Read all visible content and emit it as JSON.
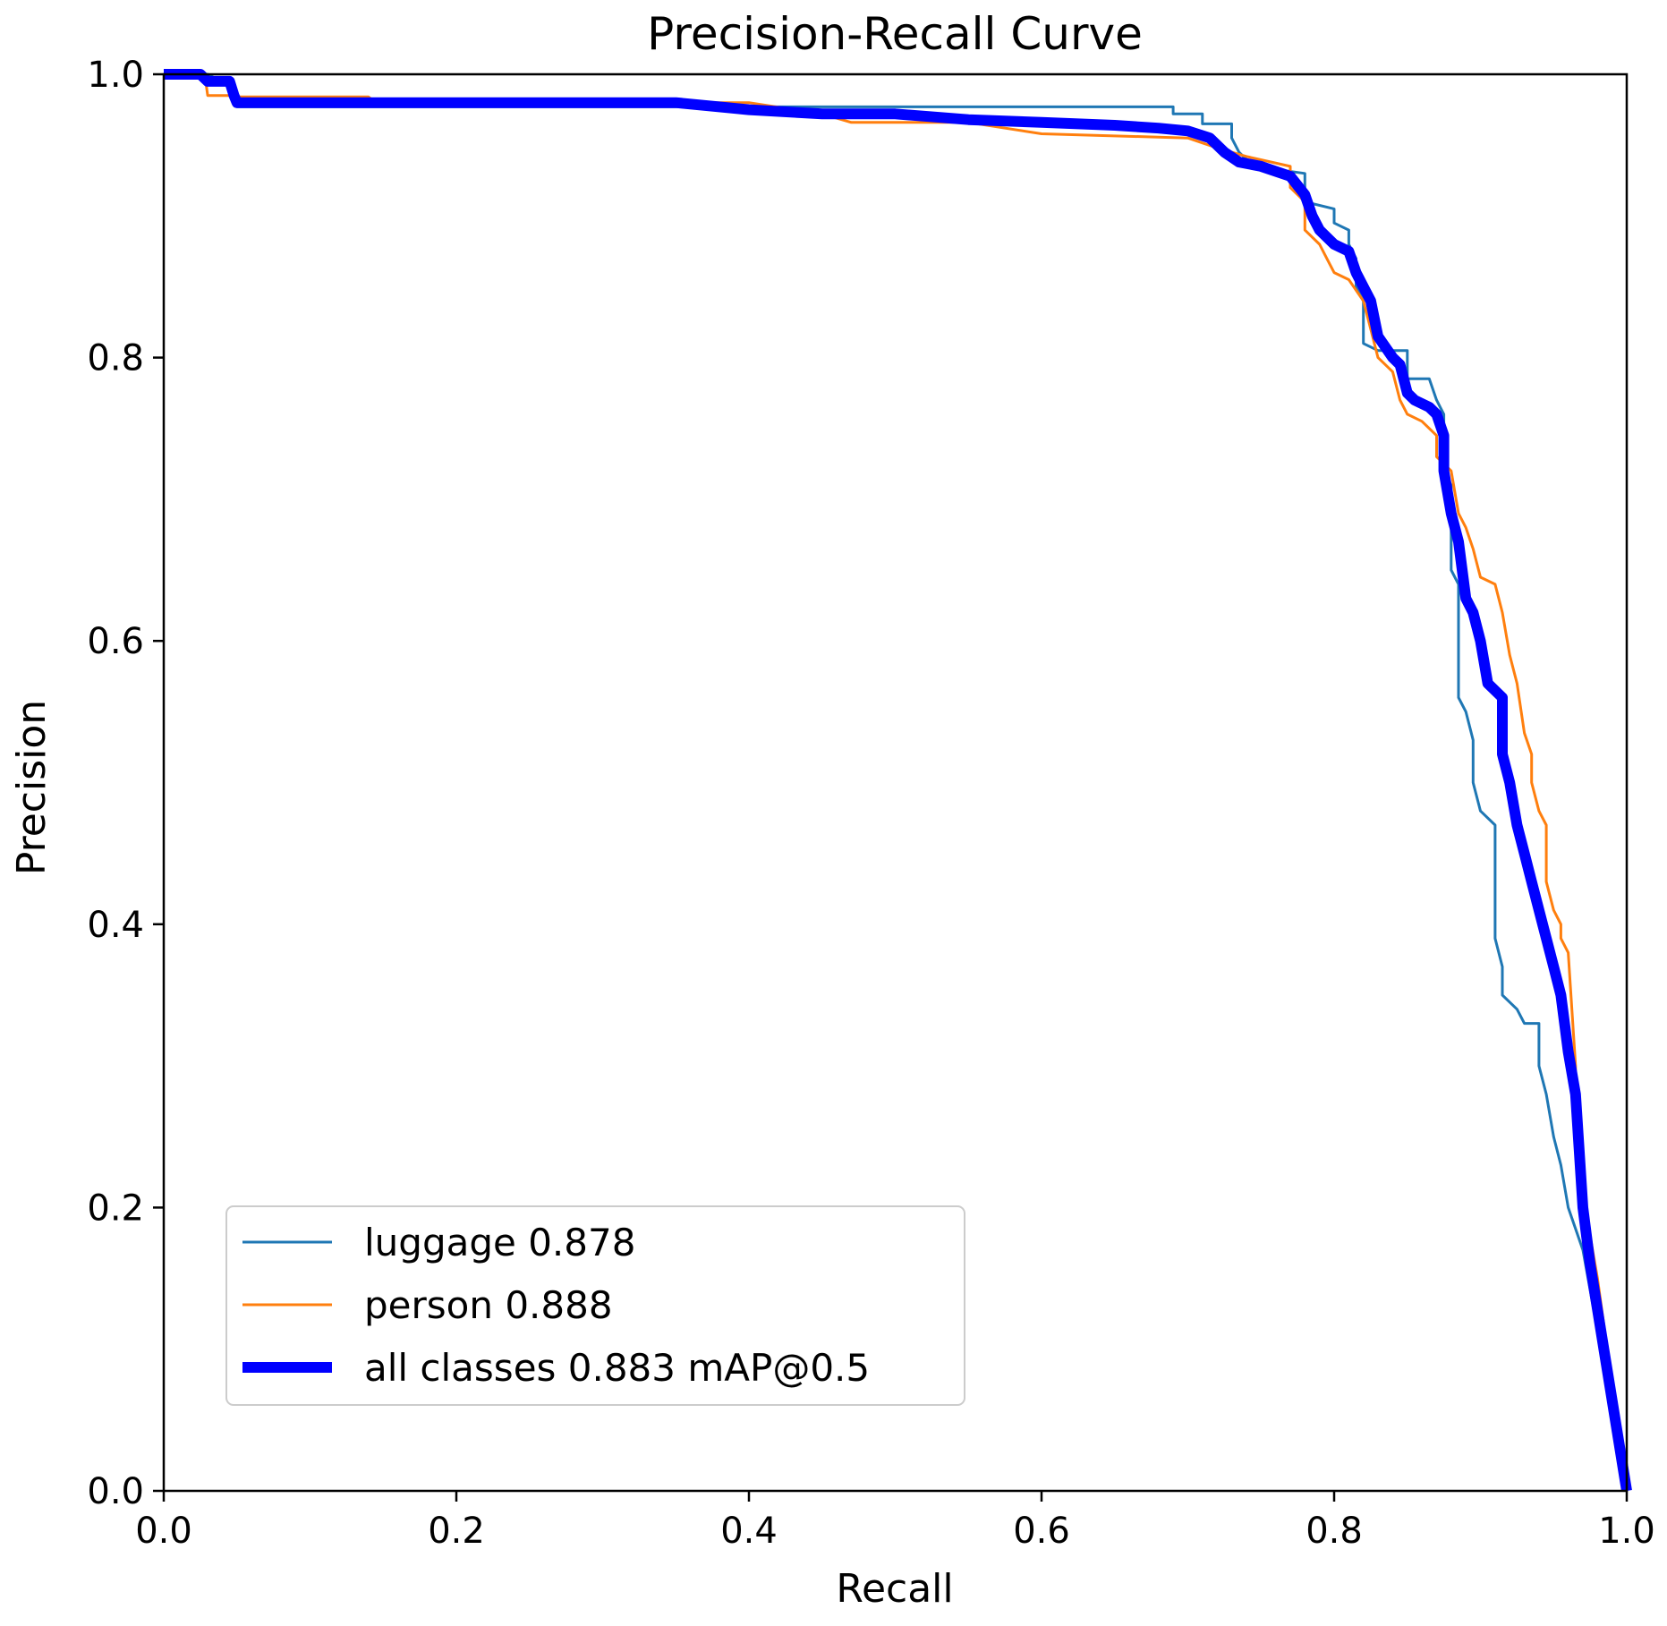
{
  "chart_data": {
    "type": "line",
    "title": "Precision-Recall Curve",
    "xlabel": "Recall",
    "ylabel": "Precision",
    "xlim": [
      0.0,
      1.0
    ],
    "ylim": [
      0.0,
      1.0
    ],
    "xticks": [
      "0.0",
      "0.2",
      "0.4",
      "0.6",
      "0.8",
      "1.0"
    ],
    "yticks": [
      "0.0",
      "0.2",
      "0.4",
      "0.6",
      "0.8",
      "1.0"
    ],
    "grid": false,
    "legend_position": "lower-left",
    "series": [
      {
        "name": "luggage 0.878",
        "color": "#1f77b4",
        "points": [
          [
            0.0,
            1.0
          ],
          [
            0.03,
            1.0
          ],
          [
            0.048,
            0.99
          ],
          [
            0.05,
            0.977
          ],
          [
            0.5,
            0.977
          ],
          [
            0.69,
            0.977
          ],
          [
            0.69,
            0.972
          ],
          [
            0.71,
            0.972
          ],
          [
            0.71,
            0.965
          ],
          [
            0.73,
            0.965
          ],
          [
            0.73,
            0.955
          ],
          [
            0.735,
            0.945
          ],
          [
            0.745,
            0.935
          ],
          [
            0.78,
            0.93
          ],
          [
            0.78,
            0.91
          ],
          [
            0.8,
            0.905
          ],
          [
            0.8,
            0.895
          ],
          [
            0.81,
            0.89
          ],
          [
            0.81,
            0.88
          ],
          [
            0.815,
            0.87
          ],
          [
            0.815,
            0.85
          ],
          [
            0.82,
            0.84
          ],
          [
            0.82,
            0.81
          ],
          [
            0.83,
            0.805
          ],
          [
            0.85,
            0.805
          ],
          [
            0.85,
            0.785
          ],
          [
            0.865,
            0.785
          ],
          [
            0.87,
            0.77
          ],
          [
            0.875,
            0.76
          ],
          [
            0.875,
            0.72
          ],
          [
            0.88,
            0.71
          ],
          [
            0.88,
            0.65
          ],
          [
            0.885,
            0.64
          ],
          [
            0.885,
            0.56
          ],
          [
            0.89,
            0.55
          ],
          [
            0.895,
            0.53
          ],
          [
            0.895,
            0.5
          ],
          [
            0.9,
            0.48
          ],
          [
            0.91,
            0.47
          ],
          [
            0.91,
            0.39
          ],
          [
            0.915,
            0.37
          ],
          [
            0.915,
            0.35
          ],
          [
            0.925,
            0.34
          ],
          [
            0.93,
            0.33
          ],
          [
            0.94,
            0.33
          ],
          [
            0.94,
            0.3
          ],
          [
            0.945,
            0.28
          ],
          [
            0.95,
            0.25
          ],
          [
            0.955,
            0.23
          ],
          [
            0.96,
            0.2
          ],
          [
            0.97,
            0.17
          ],
          [
            1.0,
            0.0
          ]
        ]
      },
      {
        "name": "person 0.888",
        "color": "#ff7f0e",
        "points": [
          [
            0.0,
            1.0
          ],
          [
            0.028,
            1.0
          ],
          [
            0.03,
            0.985
          ],
          [
            0.05,
            0.985
          ],
          [
            0.052,
            0.984
          ],
          [
            0.14,
            0.984
          ],
          [
            0.145,
            0.98
          ],
          [
            0.4,
            0.98
          ],
          [
            0.45,
            0.972
          ],
          [
            0.47,
            0.966
          ],
          [
            0.55,
            0.966
          ],
          [
            0.6,
            0.958
          ],
          [
            0.7,
            0.955
          ],
          [
            0.72,
            0.948
          ],
          [
            0.74,
            0.942
          ],
          [
            0.77,
            0.935
          ],
          [
            0.77,
            0.92
          ],
          [
            0.78,
            0.91
          ],
          [
            0.78,
            0.89
          ],
          [
            0.79,
            0.88
          ],
          [
            0.795,
            0.87
          ],
          [
            0.8,
            0.86
          ],
          [
            0.81,
            0.855
          ],
          [
            0.82,
            0.84
          ],
          [
            0.825,
            0.82
          ],
          [
            0.83,
            0.8
          ],
          [
            0.84,
            0.79
          ],
          [
            0.845,
            0.77
          ],
          [
            0.85,
            0.76
          ],
          [
            0.86,
            0.755
          ],
          [
            0.87,
            0.745
          ],
          [
            0.87,
            0.73
          ],
          [
            0.88,
            0.72
          ],
          [
            0.885,
            0.69
          ],
          [
            0.89,
            0.68
          ],
          [
            0.895,
            0.665
          ],
          [
            0.9,
            0.645
          ],
          [
            0.91,
            0.64
          ],
          [
            0.915,
            0.62
          ],
          [
            0.92,
            0.59
          ],
          [
            0.925,
            0.57
          ],
          [
            0.93,
            0.535
          ],
          [
            0.935,
            0.52
          ],
          [
            0.935,
            0.5
          ],
          [
            0.94,
            0.48
          ],
          [
            0.945,
            0.47
          ],
          [
            0.945,
            0.43
          ],
          [
            0.95,
            0.41
          ],
          [
            0.955,
            0.4
          ],
          [
            0.955,
            0.39
          ],
          [
            0.96,
            0.38
          ],
          [
            0.965,
            0.3
          ],
          [
            0.965,
            0.25
          ],
          [
            0.97,
            0.22
          ],
          [
            0.975,
            0.18
          ],
          [
            0.98,
            0.15
          ],
          [
            1.0,
            0.0
          ]
        ]
      },
      {
        "name": "all classes 0.883 mAP@0.5",
        "color": "#0000ff",
        "points": [
          [
            0.0,
            1.0
          ],
          [
            0.025,
            1.0
          ],
          [
            0.03,
            0.995
          ],
          [
            0.045,
            0.995
          ],
          [
            0.048,
            0.985
          ],
          [
            0.05,
            0.98
          ],
          [
            0.35,
            0.98
          ],
          [
            0.4,
            0.975
          ],
          [
            0.45,
            0.972
          ],
          [
            0.5,
            0.972
          ],
          [
            0.55,
            0.968
          ],
          [
            0.6,
            0.966
          ],
          [
            0.65,
            0.964
          ],
          [
            0.68,
            0.962
          ],
          [
            0.7,
            0.96
          ],
          [
            0.715,
            0.955
          ],
          [
            0.725,
            0.945
          ],
          [
            0.735,
            0.938
          ],
          [
            0.75,
            0.935
          ],
          [
            0.77,
            0.928
          ],
          [
            0.78,
            0.915
          ],
          [
            0.785,
            0.9
          ],
          [
            0.79,
            0.89
          ],
          [
            0.8,
            0.88
          ],
          [
            0.81,
            0.875
          ],
          [
            0.815,
            0.86
          ],
          [
            0.82,
            0.85
          ],
          [
            0.825,
            0.84
          ],
          [
            0.83,
            0.815
          ],
          [
            0.84,
            0.8
          ],
          [
            0.845,
            0.795
          ],
          [
            0.85,
            0.775
          ],
          [
            0.855,
            0.77
          ],
          [
            0.865,
            0.765
          ],
          [
            0.87,
            0.76
          ],
          [
            0.875,
            0.745
          ],
          [
            0.875,
            0.72
          ],
          [
            0.88,
            0.69
          ],
          [
            0.885,
            0.67
          ],
          [
            0.89,
            0.63
          ],
          [
            0.895,
            0.62
          ],
          [
            0.9,
            0.6
          ],
          [
            0.905,
            0.57
          ],
          [
            0.915,
            0.56
          ],
          [
            0.915,
            0.52
          ],
          [
            0.92,
            0.5
          ],
          [
            0.925,
            0.47
          ],
          [
            0.93,
            0.45
          ],
          [
            0.935,
            0.43
          ],
          [
            0.94,
            0.41
          ],
          [
            0.945,
            0.39
          ],
          [
            0.95,
            0.37
          ],
          [
            0.955,
            0.35
          ],
          [
            0.96,
            0.31
          ],
          [
            0.965,
            0.28
          ],
          [
            0.97,
            0.2
          ],
          [
            0.975,
            0.16
          ],
          [
            1.0,
            0.0
          ]
        ]
      }
    ]
  }
}
